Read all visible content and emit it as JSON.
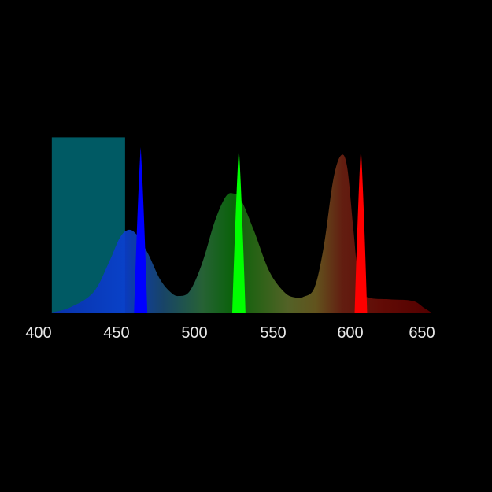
{
  "chart_data": {
    "type": "area",
    "title": "",
    "xlabel": "",
    "ylabel": "",
    "xlim": [
      400,
      652
    ],
    "ylim": [
      0,
      1.06
    ],
    "grid": false,
    "x_ticks": [
      "400",
      "450",
      "500",
      "550",
      "600",
      "650"
    ],
    "band": {
      "x_start": 408.5,
      "x_end": 455.5,
      "height": 1.06,
      "color": "#005a64"
    },
    "broad_spectrum": {
      "points": [
        [
          408,
          0
        ],
        [
          420,
          0.03
        ],
        [
          435,
          0.12
        ],
        [
          445,
          0.3
        ],
        [
          452,
          0.45
        ],
        [
          457.6,
          0.5
        ],
        [
          463,
          0.47
        ],
        [
          470,
          0.36
        ],
        [
          478,
          0.2
        ],
        [
          485,
          0.12
        ],
        [
          490,
          0.1
        ],
        [
          497,
          0.13
        ],
        [
          505,
          0.3
        ],
        [
          513,
          0.55
        ],
        [
          520,
          0.7
        ],
        [
          525,
          0.72
        ],
        [
          530,
          0.68
        ],
        [
          538,
          0.5
        ],
        [
          548,
          0.25
        ],
        [
          558,
          0.12
        ],
        [
          565,
          0.09
        ],
        [
          570,
          0.095
        ],
        [
          577,
          0.15
        ],
        [
          583,
          0.4
        ],
        [
          589,
          0.8
        ],
        [
          594,
          0.95
        ],
        [
          598,
          0.88
        ],
        [
          602,
          0.5
        ],
        [
          606,
          0.15
        ],
        [
          612,
          0.09
        ],
        [
          625,
          0.08
        ],
        [
          640,
          0.07
        ],
        [
          647,
          0.03
        ],
        [
          652,
          0
        ]
      ],
      "gradient": [
        [
          408,
          "#0a2fb0"
        ],
        [
          455,
          "#0a3fd0"
        ],
        [
          480,
          "#1a4a70"
        ],
        [
          505,
          "#2a6a3a"
        ],
        [
          525,
          "#0a6a0a"
        ],
        [
          560,
          "#5a6a2a"
        ],
        [
          578,
          "#6a5a20"
        ],
        [
          595,
          "#6b2012"
        ],
        [
          620,
          "#6a0c06"
        ],
        [
          652,
          "#5a0000"
        ]
      ]
    },
    "spikes": [
      {
        "center": 465.5,
        "width": 8.5,
        "height": 1.0,
        "color": "#0000ff"
      },
      {
        "center": 528.5,
        "width": 8.5,
        "height": 1.0,
        "color": "#00ff00"
      },
      {
        "center": 606.8,
        "width": 8,
        "height": 1.0,
        "color": "#ff0000"
      }
    ]
  }
}
